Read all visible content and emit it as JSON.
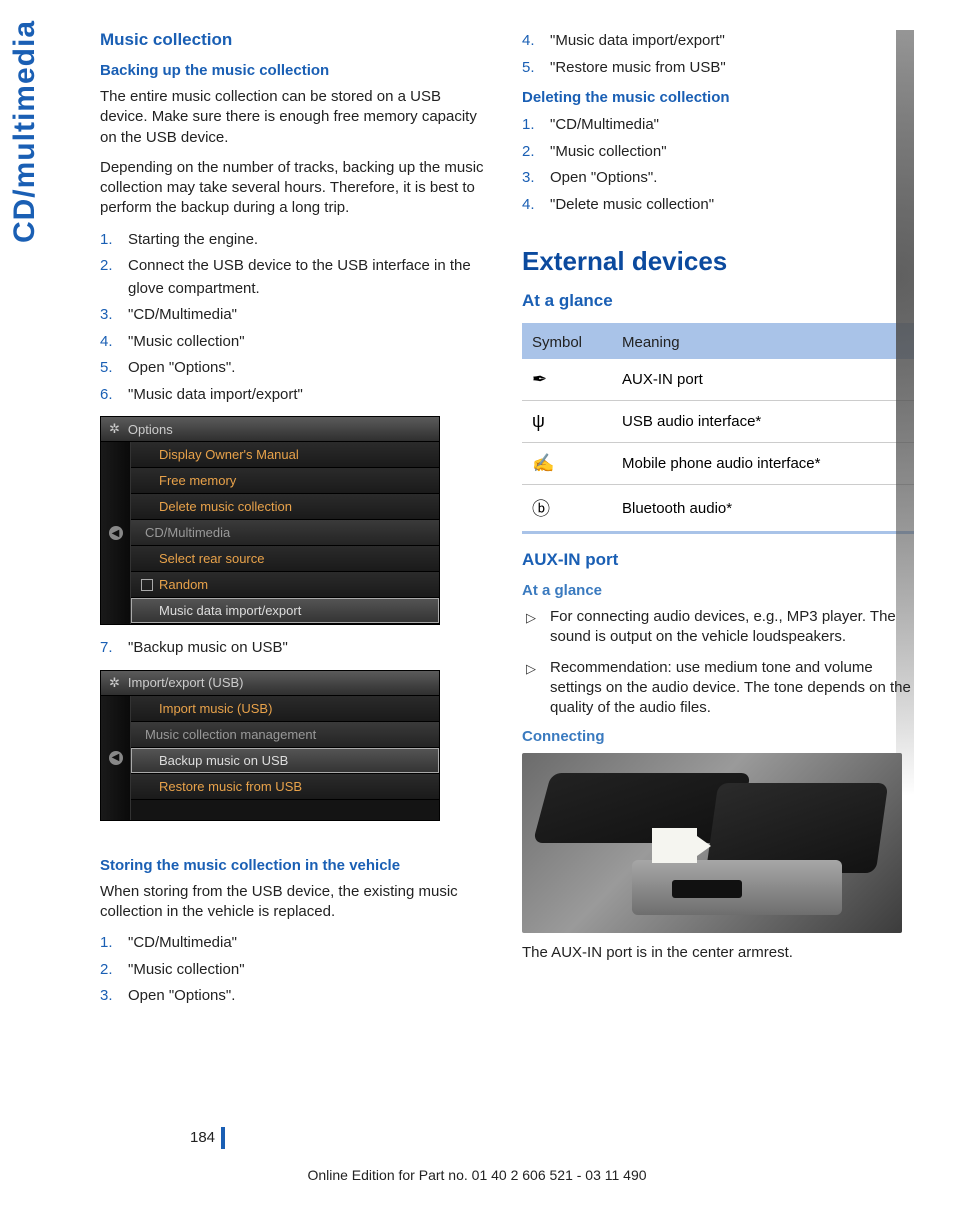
{
  "page": {
    "tab": "CD/multimedia",
    "number": "184",
    "footer": "Online Edition for Part no. 01 40 2 606 521 - 03 11 490"
  },
  "left": {
    "h_music_collection": "Music collection",
    "h_backup": "Backing up the music collection",
    "p1": "The entire music collection can be stored on a USB device. Make sure there is enough free memory capacity on the USB device.",
    "p2": "Depending on the number of tracks, backing up the music collection may take several hours. Therefore, it is best to perform the backup during a long trip.",
    "backup_steps": [
      "Starting the engine.",
      "Connect the USB device to the USB interface in the glove compartment.",
      "\"CD/Multimedia\"",
      "\"Music collection\"",
      "Open \"Options\".",
      "\"Music data import/export\""
    ],
    "shot1": {
      "title": "Options",
      "items": [
        {
          "label": "Display Owner's Manual",
          "cls": "orange"
        },
        {
          "label": "Free memory",
          "cls": "orange"
        },
        {
          "label": "Delete music collection",
          "cls": "orange"
        },
        {
          "label": "CD/Multimedia",
          "cls": "section"
        },
        {
          "label": "Select rear source",
          "cls": "orange"
        },
        {
          "label": "Random",
          "cls": "orange checkbox"
        },
        {
          "label": "Music data import/export",
          "cls": "highlight"
        }
      ]
    },
    "step7": "\"Backup music on USB\"",
    "shot2": {
      "title": "Import/export (USB)",
      "items": [
        {
          "label": "Import music (USB)",
          "cls": "orange"
        },
        {
          "label": "Music collection management",
          "cls": "section"
        },
        {
          "label": "Backup music on USB",
          "cls": "highlight"
        },
        {
          "label": "Restore music from USB",
          "cls": "orange"
        }
      ]
    },
    "h_storing": "Storing the music collection in the vehicle",
    "p_storing": "When storing from the USB device, the existing music collection in the vehicle is replaced.",
    "storing_steps": [
      "\"CD/Multimedia\"",
      "\"Music collection\"",
      "Open \"Options\"."
    ]
  },
  "right": {
    "storing_cont": [
      "\"Music data import/export\"",
      "\"Restore music from USB\""
    ],
    "h_deleting": "Deleting the music collection",
    "deleting_steps": [
      "\"CD/Multimedia\"",
      "\"Music collection\"",
      "Open \"Options\".",
      "\"Delete music collection\""
    ],
    "h_external": "External devices",
    "h_glance": "At a glance",
    "table": {
      "head": [
        "Symbol",
        "Meaning"
      ],
      "rows": [
        {
          "icon": "✒",
          "label": "AUX-IN port"
        },
        {
          "icon": "ψ",
          "label": "USB audio interface*"
        },
        {
          "icon": "✍",
          "label": "Mobile phone audio interface*"
        },
        {
          "icon": "ⓑ",
          "label": "Bluetooth audio*"
        }
      ]
    },
    "h_aux": "AUX-IN port",
    "h_glance2": "At a glance",
    "aux_bullets": [
      "For connecting audio devices, e.g., MP3 player. The sound is output on the vehicle loudspeakers.",
      "Recommendation: use medium tone and volume settings on the audio device. The tone depends on the quality of the audio files."
    ],
    "h_connecting": "Connecting",
    "p_connecting": "The AUX-IN port is in the center armrest."
  }
}
